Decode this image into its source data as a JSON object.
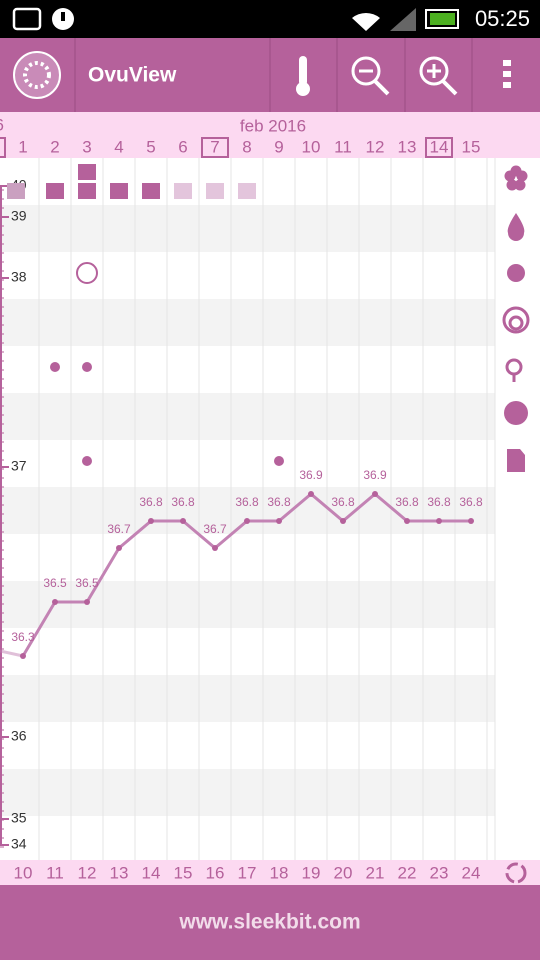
{
  "status_bar": {
    "time": "05:25"
  },
  "app_bar": {
    "title": "OvuView"
  },
  "chart_data": {
    "type": "line",
    "subtitle": "feb 2016",
    "partial_day": "6",
    "categories": [
      "1",
      "2",
      "3",
      "4",
      "5",
      "6",
      "7",
      "8",
      "9",
      "10",
      "11",
      "12",
      "13",
      "14",
      "15"
    ],
    "cycle_days": [
      "10",
      "11",
      "12",
      "13",
      "14",
      "15",
      "16",
      "17",
      "18",
      "19",
      "20",
      "21",
      "22",
      "23",
      "24"
    ],
    "values": [
      36.3,
      36.5,
      36.5,
      36.7,
      36.8,
      36.8,
      36.7,
      36.8,
      36.8,
      36.9,
      36.8,
      36.9,
      36.8,
      36.8,
      36.8
    ],
    "color": "#c383b4",
    "ylim": [
      34,
      40
    ],
    "yticks": [
      40,
      39,
      38,
      37,
      36,
      35,
      34
    ],
    "grid": true
  },
  "footer": {
    "url": "www.sleekbit.com"
  }
}
